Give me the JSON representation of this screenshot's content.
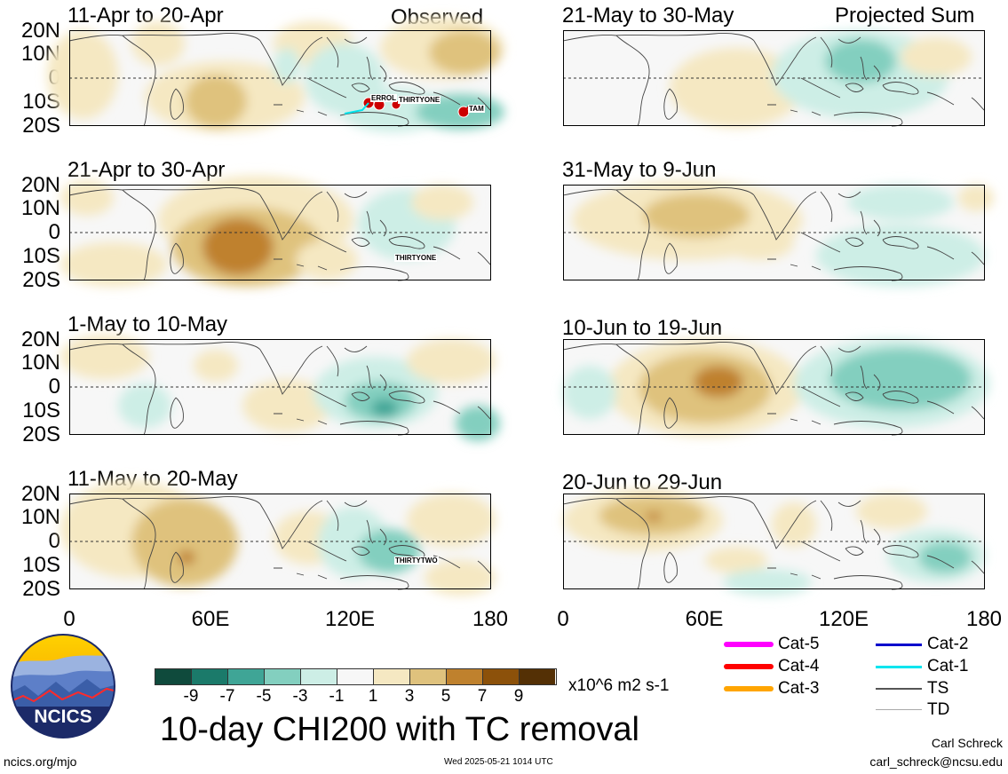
{
  "panel_headers": {
    "observed": "Observed",
    "projected": "Projected Sum"
  },
  "panels": [
    {
      "title": "11-Apr to 20-Apr",
      "storms": [
        "ERROL",
        "THIRTYONE",
        "TAM"
      ]
    },
    {
      "title": "21-Apr to 30-Apr",
      "storms": [
        "THIRTYONE"
      ]
    },
    {
      "title": "1-May to 10-May",
      "storms": []
    },
    {
      "title": "11-May to 20-May",
      "storms": [
        "THIRTYTWO"
      ]
    },
    {
      "title": "21-May to 30-May",
      "storms": []
    },
    {
      "title": "31-May to 9-Jun",
      "storms": []
    },
    {
      "title": "10-Jun to 19-Jun",
      "storms": []
    },
    {
      "title": "20-Jun to 29-Jun",
      "storms": []
    }
  ],
  "lat_labels": [
    "20N",
    "10N",
    "0",
    "10S",
    "20S"
  ],
  "lon_labels": [
    "0",
    "60E",
    "120E",
    "180"
  ],
  "colorbar": {
    "ticks": [
      "-9",
      "-7",
      "-5",
      "-3",
      "-1",
      "1",
      "3",
      "5",
      "7",
      "9"
    ],
    "colors": [
      "#0f4a3c",
      "#1b7a6a",
      "#3fa596",
      "#83cfbf",
      "#cdeee6",
      "#f7f7f7",
      "#f5e8c2",
      "#dfc27d",
      "#bf812d",
      "#8c510a",
      "#543005"
    ],
    "units": "x10^6 m2 s-1"
  },
  "legend": {
    "cat5": {
      "label": "Cat-5",
      "color": "#ff00ff"
    },
    "cat4": {
      "label": "Cat-4",
      "color": "#ff0000"
    },
    "cat3": {
      "label": "Cat-3",
      "color": "#ffa500"
    },
    "cat2": {
      "label": "Cat-2",
      "color": "#0000cc"
    },
    "cat1": {
      "label": "Cat-1",
      "color": "#00e5ee"
    },
    "ts": {
      "label": "TS",
      "color": "#555555"
    },
    "td": {
      "label": "TD",
      "color": "#aaaaaa"
    }
  },
  "logo_text": "NCICS",
  "main_title": "10-day CHI200 with TC removal",
  "author": "Carl Schreck",
  "email": "carl_schreck@ncsu.edu",
  "site": "ncics.org/mjo",
  "timestamp": "Wed 2025-05-21 1014 UTC"
}
